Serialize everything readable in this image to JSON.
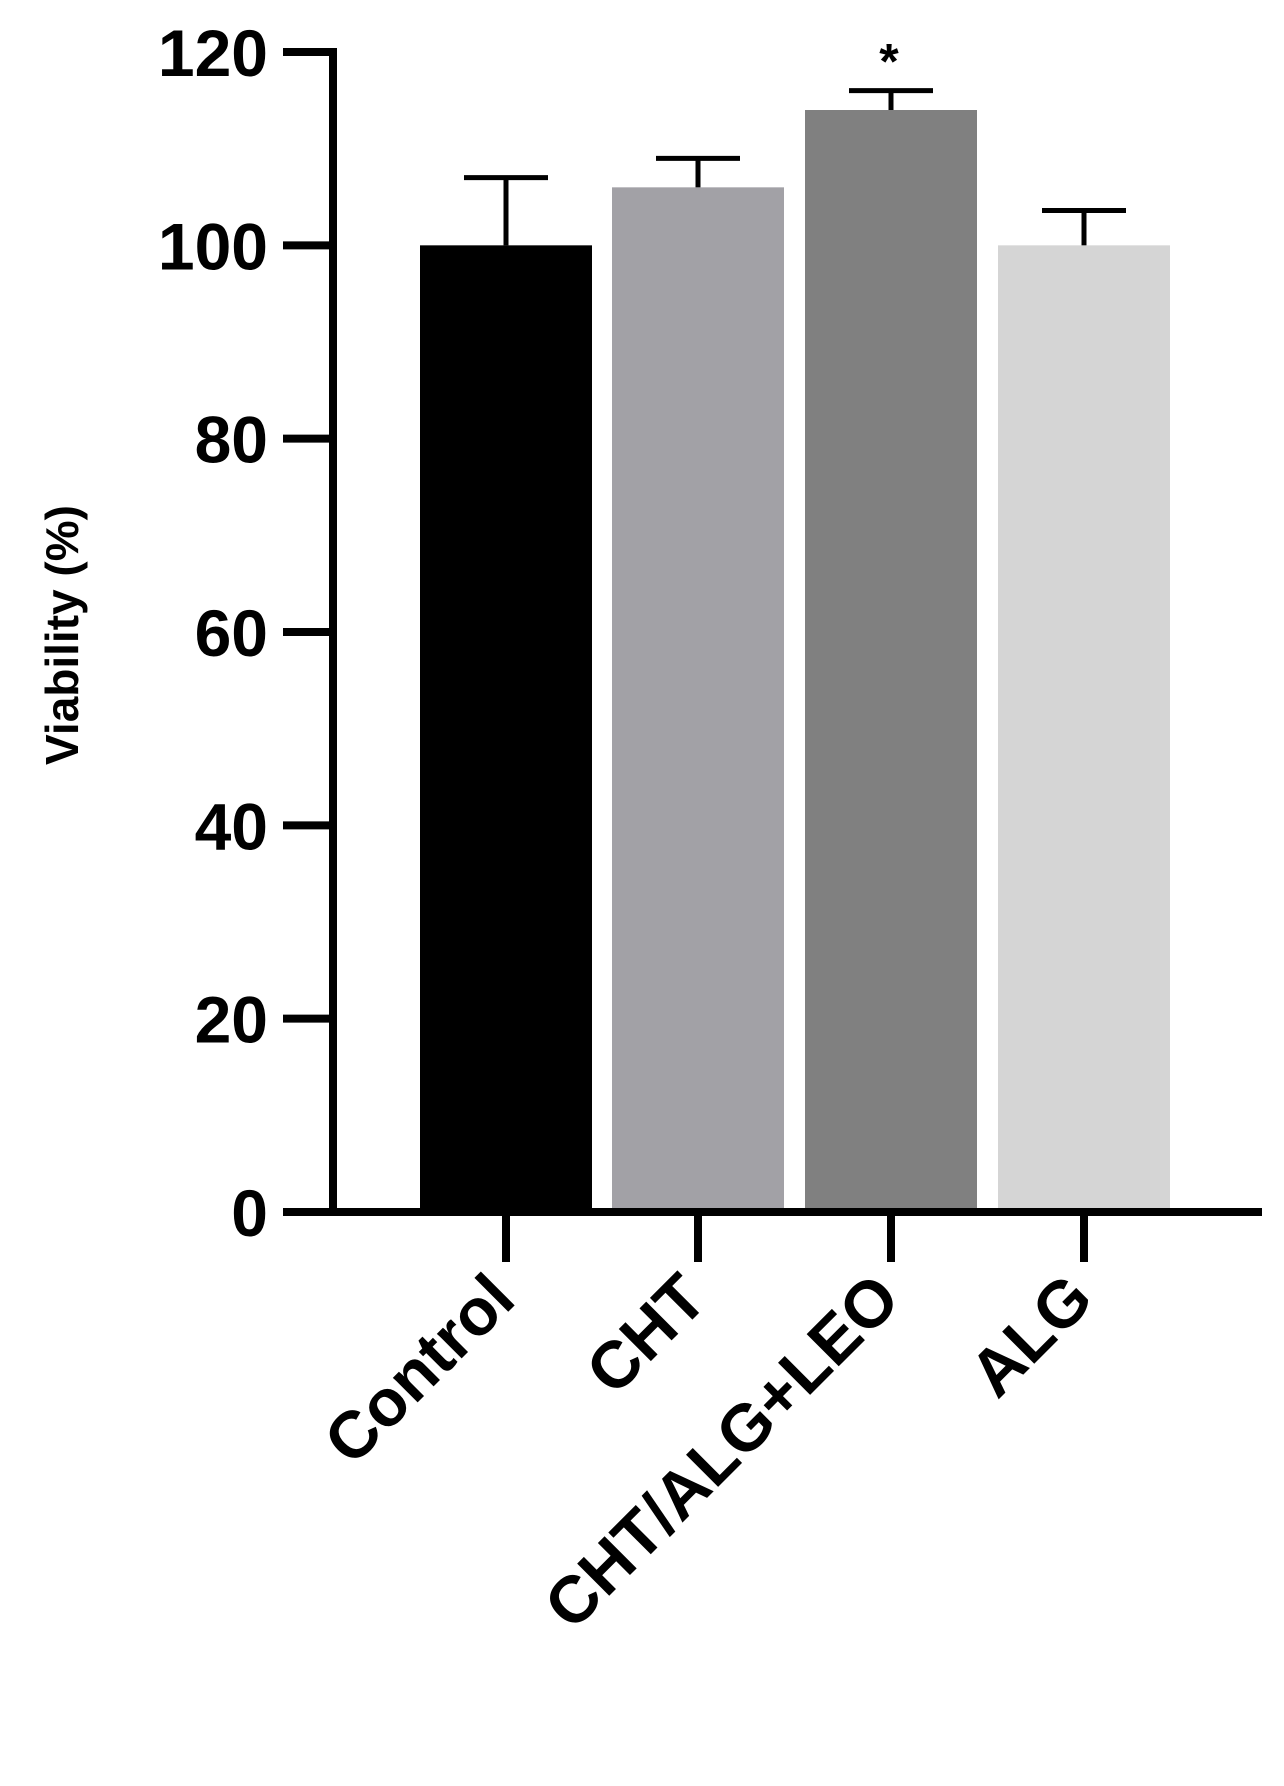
{
  "chart_data": {
    "type": "bar",
    "title": "",
    "xlabel": "",
    "ylabel": "Viability (%)",
    "ylim": [
      0,
      120
    ],
    "yticks": [
      0,
      20,
      40,
      60,
      80,
      100,
      120
    ],
    "ytick_labels": [
      "0",
      "20",
      "40",
      "60",
      "80",
      "100",
      "120"
    ],
    "grid": false,
    "legend": "none",
    "categories": [
      "Control",
      "CHT",
      "CHT/ALG+LEO",
      "ALG"
    ],
    "values": [
      100,
      106,
      114,
      100
    ],
    "errors": [
      7,
      3,
      2,
      3.6
    ],
    "colors": [
      "#000000",
      "#a2a1a6",
      "#808080",
      "#d5d5d5"
    ],
    "annotations": [
      {
        "category": "CHT/ALG+LEO",
        "text": "*"
      }
    ]
  }
}
